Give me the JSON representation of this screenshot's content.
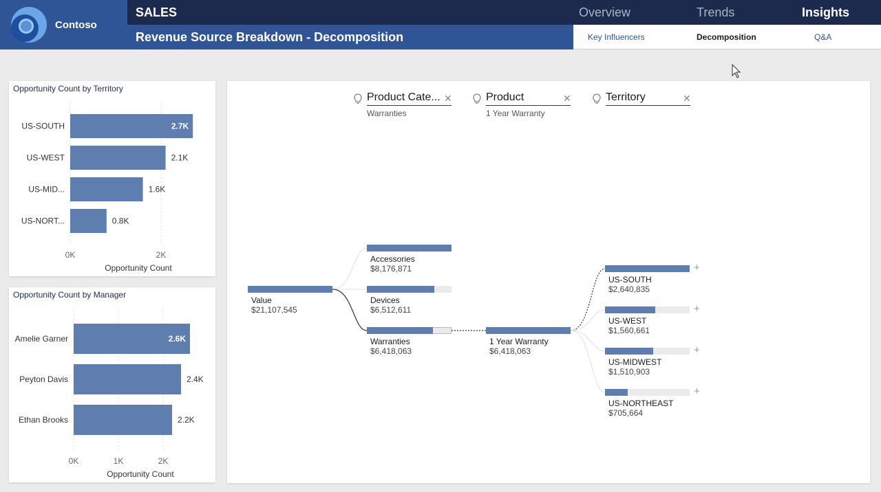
{
  "brand": {
    "name": "Contoso"
  },
  "header": {
    "app_title": "SALES",
    "page_title": "Revenue Source Breakdown - Decomposition",
    "nav": [
      "Overview",
      "Trends",
      "Insights"
    ],
    "nav_active": "Insights",
    "subtabs": [
      "Key Influencers",
      "Decomposition",
      "Q&A"
    ],
    "subtab_active": "Decomposition"
  },
  "colors": {
    "bar": "#5f7eb0",
    "header_dark": "#1c2b4d",
    "header_blue": "#2f5597"
  },
  "chart_data": [
    {
      "type": "bar",
      "title": "Opportunity Count by Territory",
      "categories": [
        "US-SOUTH",
        "US-WEST",
        "US-MID...",
        "US-NORT..."
      ],
      "values": [
        2700,
        2100,
        1600,
        800
      ],
      "data_labels": [
        "2.7K",
        "2.1K",
        "1.6K",
        "0.8K"
      ],
      "xticks": [
        "0K",
        "2K"
      ],
      "xlabel": "Opportunity Count",
      "xlim": [
        0,
        2700
      ],
      "orientation": "horizontal"
    },
    {
      "type": "bar",
      "title": "Opportunity Count by Manager",
      "categories": [
        "Amelie Garner",
        "Peyton Davis",
        "Ethan Brooks"
      ],
      "values": [
        2600,
        2400,
        2200
      ],
      "data_labels": [
        "2.6K",
        "2.4K",
        "2.2K"
      ],
      "xticks": [
        "0K",
        "1K",
        "2K"
      ],
      "xlabel": "Opportunity Count",
      "xlim": [
        0,
        2600
      ],
      "orientation": "horizontal"
    }
  ],
  "decomposition": {
    "levels": [
      {
        "name": "Product Cate...",
        "filter": "Warranties"
      },
      {
        "name": "Product",
        "filter": "1 Year Warranty"
      },
      {
        "name": "Territory",
        "filter": ""
      }
    ],
    "root": {
      "label": "Value",
      "value": "$21,107,545",
      "fraction": 1.0
    },
    "categories": [
      {
        "label": "Accessories",
        "value": "$8,176,871",
        "fraction": 1.0
      },
      {
        "label": "Devices",
        "value": "$6,512,611",
        "fraction": 0.8
      },
      {
        "label": "Warranties",
        "value": "$6,418,063",
        "fraction": 0.78
      }
    ],
    "products": [
      {
        "label": "1 Year Warranty",
        "value": "$6,418,063",
        "fraction": 1.0
      }
    ],
    "territories": [
      {
        "label": "US-SOUTH",
        "value": "$2,640,835",
        "fraction": 1.0
      },
      {
        "label": "US-WEST",
        "value": "$1,560,661",
        "fraction": 0.59
      },
      {
        "label": "US-MIDWEST",
        "value": "$1,510,903",
        "fraction": 0.57
      },
      {
        "label": "US-NORTHEAST",
        "value": "$705,664",
        "fraction": 0.27
      }
    ]
  }
}
